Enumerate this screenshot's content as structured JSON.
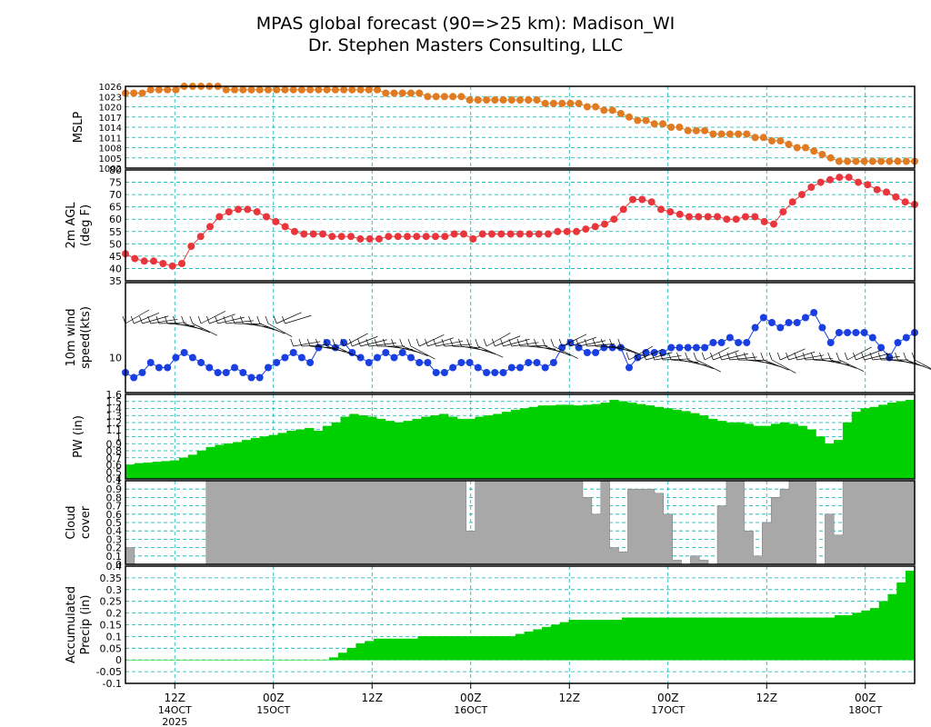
{
  "title_line1": "MPAS global forecast (90=>25 km): Madison_WI",
  "title_line2": "Dr. Stephen Masters Consulting, LLC",
  "colors": {
    "grid": "#00b0b0",
    "mslp": "#e07b22",
    "temp": "#e8363c",
    "wind": "#1a3fe0",
    "pw": "#00d000",
    "cloud": "#a8a8a8",
    "precip": "#00d000"
  },
  "x_axis": {
    "range": [
      0,
      78
    ],
    "ticks": [
      {
        "x": 6,
        "label": "12Z",
        "sub": "14OCT",
        "sub2": "2025"
      },
      {
        "x": 18,
        "label": "00Z",
        "sub": "15OCT"
      },
      {
        "x": 30,
        "label": "12Z"
      },
      {
        "x": 42,
        "label": "00Z",
        "sub": "16OCT"
      },
      {
        "x": 54,
        "label": "12Z"
      },
      {
        "x": 66,
        "label": "00Z",
        "sub": "17OCT"
      },
      {
        "x": 78,
        "label": "12Z"
      },
      {
        "x": 90,
        "label": "00Z",
        "sub": "18OCT"
      }
    ]
  },
  "chart_data": [
    {
      "type": "line",
      "ylabel": [
        "MSLP"
      ],
      "ylim": [
        1002,
        1026
      ],
      "yticks": [
        "1002",
        "1005",
        "1008",
        "1011",
        "1014",
        "1017",
        "1020",
        "1023",
        "1026"
      ],
      "x_hours_step": 1.2,
      "series": [
        {
          "values": [
            1024,
            1024,
            1024,
            1025,
            1025,
            1025,
            1025,
            1026,
            1026,
            1026,
            1026,
            1026,
            1025,
            1025,
            1025,
            1025,
            1025,
            1025,
            1025,
            1025,
            1025,
            1025,
            1025,
            1025,
            1025,
            1025,
            1025,
            1025,
            1025,
            1025,
            1025,
            1024,
            1024,
            1024,
            1024,
            1024,
            1023,
            1023,
            1023,
            1023,
            1023,
            1022,
            1022,
            1022,
            1022,
            1022,
            1022,
            1022,
            1022,
            1022,
            1021,
            1021,
            1021,
            1021,
            1021,
            1020,
            1020,
            1019,
            1019,
            1018,
            1017,
            1016,
            1016,
            1015,
            1015,
            1014,
            1014,
            1013,
            1013,
            1013,
            1012,
            1012,
            1012,
            1012,
            1012,
            1011,
            1011,
            1010,
            1010,
            1009,
            1008,
            1008,
            1007,
            1006,
            1005,
            1004,
            1004,
            1004,
            1004,
            1004,
            1004,
            1004,
            1004,
            1004,
            1004
          ]
        }
      ]
    },
    {
      "type": "line",
      "ylabel": [
        "2m AGL",
        "(deg F)"
      ],
      "ylim": [
        35,
        80
      ],
      "yticks": [
        "35",
        "40",
        "45",
        "50",
        "55",
        "60",
        "65",
        "70",
        "75",
        "80"
      ],
      "series": [
        {
          "values": [
            46,
            44,
            43,
            43,
            42,
            41,
            42,
            49,
            53,
            57,
            61,
            63,
            64,
            64,
            63,
            61,
            59,
            57,
            55,
            54,
            54,
            54,
            53,
            53,
            53,
            52,
            52,
            52,
            53,
            53,
            53,
            53,
            53,
            53,
            53,
            54,
            54,
            52,
            54,
            54,
            54,
            54,
            54,
            54,
            54,
            54,
            55,
            55,
            55,
            56,
            57,
            58,
            60,
            64,
            68,
            68,
            67,
            64,
            63,
            62,
            61,
            61,
            61,
            61,
            60,
            60,
            61,
            61,
            59,
            58,
            63,
            67,
            70,
            73,
            75,
            76,
            77,
            77,
            75,
            74,
            72,
            71,
            69,
            67,
            66
          ]
        }
      ]
    },
    {
      "type": "scatter",
      "ylabel": [
        "10m wind",
        "speed(kts)"
      ],
      "ylim": [
        3,
        25
      ],
      "yticks": [
        "10"
      ],
      "series": [
        {
          "values": [
            7,
            6,
            7,
            9,
            8,
            8,
            10,
            11,
            10,
            9,
            8,
            7,
            7,
            8,
            7,
            6,
            6,
            8,
            9,
            10,
            11,
            10,
            9,
            12,
            13,
            12,
            13,
            11,
            10,
            9,
            10,
            11,
            10,
            11,
            10,
            9,
            9,
            7,
            7,
            8,
            9,
            9,
            8,
            7,
            7,
            7,
            8,
            8,
            9,
            9,
            8,
            9,
            12,
            13,
            12,
            11,
            11,
            12,
            12,
            12,
            8,
            10,
            11,
            11,
            11,
            12,
            12,
            12,
            12,
            12,
            13,
            13,
            14,
            13,
            13,
            16,
            18,
            17,
            16,
            17,
            17,
            18,
            19,
            16,
            13,
            15,
            15,
            15,
            15,
            14,
            12,
            10,
            13,
            14,
            15
          ]
        }
      ]
    },
    {
      "type": "area",
      "ylabel": [
        "PW (in)"
      ],
      "ylim": [
        0.4,
        1.6
      ],
      "yticks": [
        "0.4",
        "0.5",
        "0.6",
        "0.7",
        "0.8",
        "0.9",
        "1",
        "1.1",
        "1.2",
        "1.3",
        "1.4",
        "1.5",
        "1.6"
      ],
      "series": [
        {
          "values": [
            0.6,
            0.62,
            0.63,
            0.64,
            0.65,
            0.66,
            0.7,
            0.74,
            0.8,
            0.85,
            0.88,
            0.9,
            0.92,
            0.95,
            0.98,
            1.0,
            1.02,
            1.05,
            1.08,
            1.1,
            1.12,
            1.08,
            1.15,
            1.2,
            1.28,
            1.32,
            1.3,
            1.28,
            1.25,
            1.22,
            1.2,
            1.22,
            1.25,
            1.28,
            1.3,
            1.32,
            1.28,
            1.25,
            1.25,
            1.28,
            1.3,
            1.32,
            1.35,
            1.38,
            1.4,
            1.42,
            1.44,
            1.44,
            1.45,
            1.45,
            1.44,
            1.45,
            1.46,
            1.48,
            1.52,
            1.5,
            1.48,
            1.46,
            1.44,
            1.42,
            1.4,
            1.38,
            1.36,
            1.33,
            1.3,
            1.25,
            1.22,
            1.2,
            1.2,
            1.18,
            1.15,
            1.15,
            1.18,
            1.2,
            1.18,
            1.15,
            1.1,
            1.0,
            0.9,
            0.95,
            1.2,
            1.35,
            1.4,
            1.42,
            1.45,
            1.48,
            1.5,
            1.52
          ]
        }
      ]
    },
    {
      "type": "bar",
      "ylabel": [
        "Cloud",
        "cover"
      ],
      "ylim": [
        0,
        1
      ],
      "yticks": [
        "0",
        "0.1",
        "0.2",
        "0.3",
        "0.4",
        "0.5",
        "0.6",
        "0.7",
        "0.8",
        "0.9",
        "1"
      ],
      "series": [
        {
          "values": [
            0.2,
            0,
            0,
            0,
            0,
            0,
            0,
            0,
            0,
            1,
            1,
            1,
            1,
            1,
            1,
            1,
            1,
            1,
            1,
            1,
            1,
            1,
            1,
            1,
            1,
            1,
            1,
            1,
            1,
            1,
            1,
            1,
            1,
            1,
            1,
            1,
            1,
            1,
            0.4,
            1,
            1,
            1,
            1,
            1,
            1,
            1,
            1,
            1,
            1,
            1,
            1,
            0.8,
            0.6,
            1,
            0.2,
            0.15,
            0.9,
            0.9,
            0.9,
            0.85,
            0.6,
            0.05,
            0,
            0.1,
            0.05,
            0,
            0.7,
            1,
            1,
            0.4,
            0.1,
            0.5,
            0.8,
            0.9,
            1,
            1,
            1,
            0,
            0.6,
            0.35,
            1,
            1,
            1,
            1,
            1,
            1,
            1,
            1
          ]
        }
      ]
    },
    {
      "type": "area",
      "ylabel": [
        "Accumulated",
        "Precip (in)"
      ],
      "ylim": [
        -0.1,
        0.4
      ],
      "yticks": [
        "-0.1",
        "-0.05",
        "0",
        "0.05",
        "0.1",
        "0.15",
        "0.2",
        "0.25",
        "0.3",
        "0.35",
        "0.4"
      ],
      "series": [
        {
          "values": [
            0,
            0,
            0,
            0,
            0,
            0,
            0,
            0,
            0,
            0,
            0,
            0,
            0,
            0,
            0,
            0,
            0,
            0,
            0,
            0,
            0,
            0,
            0,
            0.01,
            0.03,
            0.05,
            0.07,
            0.08,
            0.09,
            0.09,
            0.09,
            0.09,
            0.09,
            0.1,
            0.1,
            0.1,
            0.1,
            0.1,
            0.1,
            0.1,
            0.1,
            0.1,
            0.1,
            0.1,
            0.11,
            0.12,
            0.13,
            0.14,
            0.15,
            0.16,
            0.17,
            0.17,
            0.17,
            0.17,
            0.17,
            0.17,
            0.18,
            0.18,
            0.18,
            0.18,
            0.18,
            0.18,
            0.18,
            0.18,
            0.18,
            0.18,
            0.18,
            0.18,
            0.18,
            0.18,
            0.18,
            0.18,
            0.18,
            0.18,
            0.18,
            0.18,
            0.18,
            0.18,
            0.18,
            0.18,
            0.19,
            0.19,
            0.2,
            0.21,
            0.22,
            0.25,
            0.28,
            0.33,
            0.38
          ]
        }
      ]
    }
  ]
}
